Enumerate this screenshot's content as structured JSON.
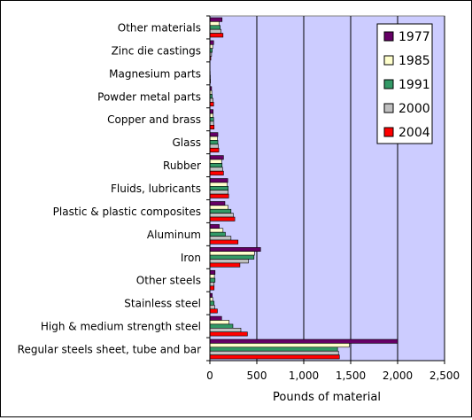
{
  "chart_data": {
    "type": "bar",
    "orientation": "horizontal",
    "categories": [
      "Regular steels sheet, tube and bar",
      "High & medium strength steel",
      "Stainless steel",
      "Other steels",
      "Iron",
      "Aluminum",
      "Plastic & plastic composites",
      "Fluids, lubricants",
      "Rubber",
      "Glass",
      "Copper and brass",
      "Powder metal parts",
      "Magnesium parts",
      "Zinc die castings",
      "Other materials"
    ],
    "series": [
      {
        "name": "1977",
        "color": "#660066",
        "values": [
          2000,
          125,
          25,
          55,
          540,
          100,
          160,
          190,
          145,
          85,
          35,
          18,
          0,
          40,
          130
        ]
      },
      {
        "name": "1985",
        "color": "#ffffcc",
        "values": [
          1485,
          205,
          30,
          48,
          475,
          140,
          195,
          185,
          125,
          80,
          35,
          20,
          2,
          30,
          100
        ]
      },
      {
        "name": "1991",
        "color": "#339966",
        "values": [
          1360,
          245,
          45,
          55,
          470,
          165,
          225,
          195,
          130,
          85,
          40,
          25,
          3,
          25,
          110
        ]
      },
      {
        "name": "2000",
        "color": "#c0c0c0",
        "values": [
          1370,
          330,
          50,
          45,
          410,
          225,
          250,
          195,
          135,
          90,
          40,
          35,
          5,
          18,
          120
        ]
      },
      {
        "name": "2004",
        "color": "#ff0000",
        "values": [
          1380,
          400,
          80,
          45,
          320,
          300,
          265,
          200,
          145,
          95,
          45,
          40,
          6,
          10,
          140
        ]
      }
    ],
    "xlabel": "Pounds of material",
    "xlim": [
      0,
      2500
    ],
    "xticks": [
      "0",
      "500",
      "1,000",
      "1,500",
      "2,000",
      "2,500"
    ],
    "xtick_values": [
      0,
      500,
      1000,
      1500,
      2000,
      2500
    ],
    "grid": "vertical",
    "legend": "top-right",
    "colors": {
      "plot_background": "#ccccff",
      "grid": "#000000"
    }
  }
}
